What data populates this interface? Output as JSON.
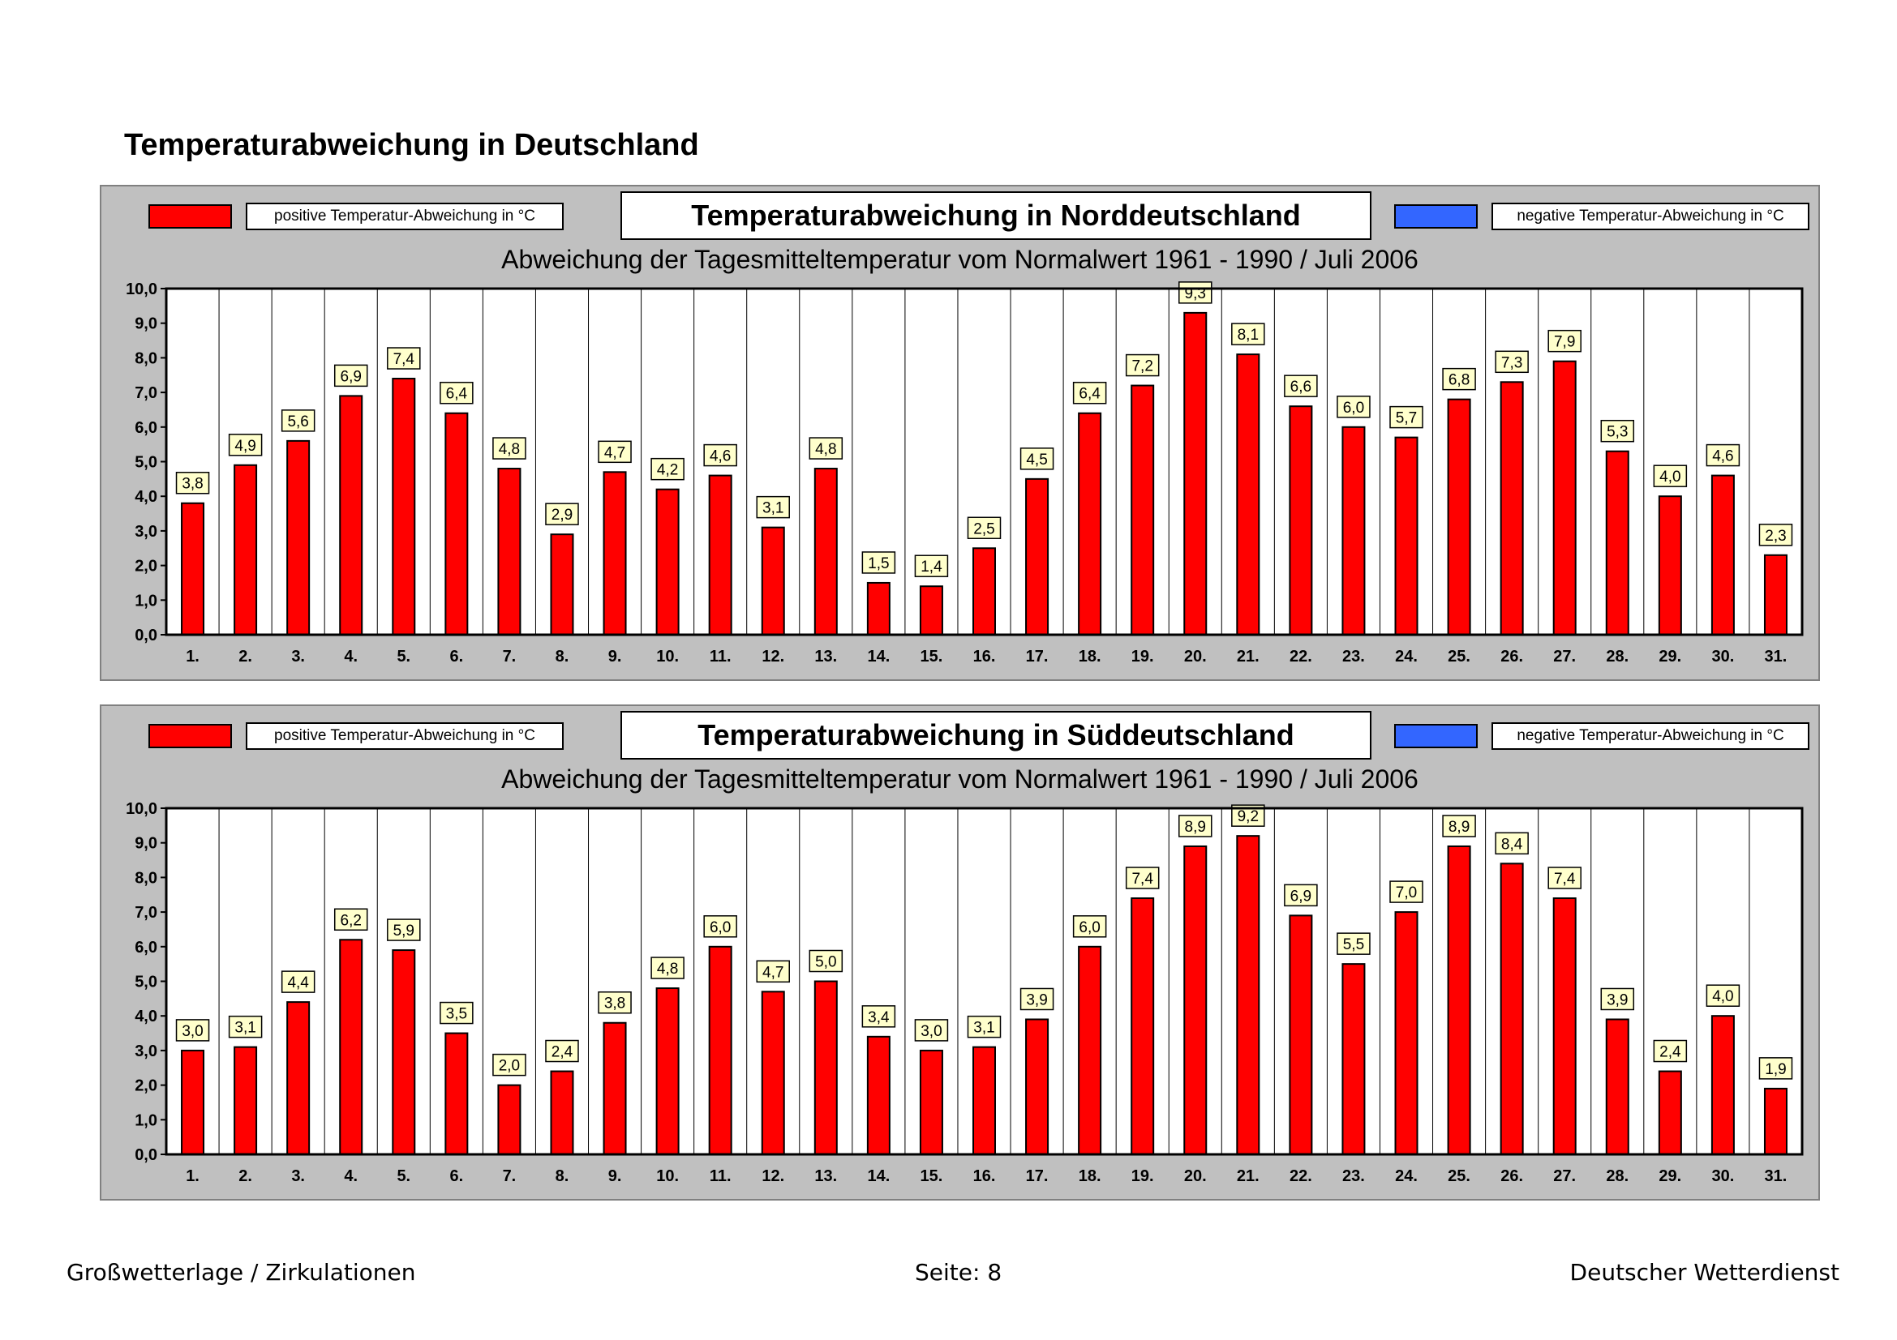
{
  "page": {
    "title": "Temperaturabweichung in Deutschland"
  },
  "footer": {
    "left": "Großwetterlage / Zirkulationen",
    "center": "Seite: 8",
    "right": "Deutscher Wetterdienst"
  },
  "colors": {
    "positive": "#ff0000",
    "negative": "#3366ff",
    "panel_background": "#c0c0c0",
    "label_background": "#ffffcc"
  },
  "chart_data": [
    {
      "type": "bar",
      "title": "Temperaturabweichung in Norddeutschland",
      "subtitle": "Abweichung der Tagesmitteltemperatur vom Normalwert 1961 - 1990  /  Juli 2006",
      "legend_positive": "positive Temperatur-Abweichung in °C",
      "legend_negative": "negative Temperatur-Abweichung in °C",
      "ylim": [
        0,
        10
      ],
      "y_ticks": [
        "0,0",
        "1,0",
        "2,0",
        "3,0",
        "4,0",
        "5,0",
        "6,0",
        "7,0",
        "8,0",
        "9,0",
        "10,0"
      ],
      "categories": [
        "1.",
        "2.",
        "3.",
        "4.",
        "5.",
        "6.",
        "7.",
        "8.",
        "9.",
        "10.",
        "11.",
        "12.",
        "13.",
        "14.",
        "15.",
        "16.",
        "17.",
        "18.",
        "19.",
        "20.",
        "21.",
        "22.",
        "23.",
        "24.",
        "25.",
        "26.",
        "27.",
        "28.",
        "29.",
        "30.",
        "31."
      ],
      "values": [
        3.8,
        4.9,
        5.6,
        6.9,
        7.4,
        6.4,
        4.8,
        2.9,
        4.7,
        4.2,
        4.6,
        3.1,
        4.8,
        1.5,
        1.4,
        2.5,
        4.5,
        6.4,
        7.2,
        9.3,
        8.1,
        6.6,
        6.0,
        5.7,
        6.8,
        7.3,
        7.9,
        5.3,
        4.0,
        4.6,
        2.3
      ],
      "value_labels": [
        "3,8",
        "4,9",
        "5,6",
        "6,9",
        "7,4",
        "6,4",
        "4,8",
        "2,9",
        "4,7",
        "4,2",
        "4,6",
        "3,1",
        "4,8",
        "1,5",
        "1,4",
        "2,5",
        "4,5",
        "6,4",
        "7,2",
        "9,3",
        "8,1",
        "6,6",
        "6,0",
        "5,7",
        "6,8",
        "7,3",
        "7,9",
        "5,3",
        "4,0",
        "4,6",
        "2,3"
      ]
    },
    {
      "type": "bar",
      "title": "Temperaturabweichung in Süddeutschland",
      "subtitle": "Abweichung der Tagesmitteltemperatur vom Normalwert 1961 - 1990  /  Juli 2006",
      "legend_positive": "positive Temperatur-Abweichung in °C",
      "legend_negative": "negative Temperatur-Abweichung in °C",
      "ylim": [
        0,
        10
      ],
      "y_ticks": [
        "0,0",
        "1,0",
        "2,0",
        "3,0",
        "4,0",
        "5,0",
        "6,0",
        "7,0",
        "8,0",
        "9,0",
        "10,0"
      ],
      "categories": [
        "1.",
        "2.",
        "3.",
        "4.",
        "5.",
        "6.",
        "7.",
        "8.",
        "9.",
        "10.",
        "11.",
        "12.",
        "13.",
        "14.",
        "15.",
        "16.",
        "17.",
        "18.",
        "19.",
        "20.",
        "21.",
        "22.",
        "23.",
        "24.",
        "25.",
        "26.",
        "27.",
        "28.",
        "29.",
        "30.",
        "31."
      ],
      "values": [
        3.0,
        3.1,
        4.4,
        6.2,
        5.9,
        3.5,
        2.0,
        2.4,
        3.8,
        4.8,
        6.0,
        4.7,
        5.0,
        3.4,
        3.0,
        3.1,
        3.9,
        6.0,
        7.4,
        8.9,
        9.2,
        6.9,
        5.5,
        7.0,
        8.9,
        8.4,
        7.4,
        3.9,
        2.4,
        4.0,
        1.9
      ],
      "value_labels": [
        "3,0",
        "3,1",
        "4,4",
        "6,2",
        "5,9",
        "3,5",
        "2,0",
        "2,4",
        "3,8",
        "4,8",
        "6,0",
        "4,7",
        "5,0",
        "3,4",
        "3,0",
        "3,1",
        "3,9",
        "6,0",
        "7,4",
        "8,9",
        "9,2",
        "6,9",
        "5,5",
        "7,0",
        "8,9",
        "8,4",
        "7,4",
        "3,9",
        "2,4",
        "4,0",
        "1,9"
      ]
    }
  ]
}
